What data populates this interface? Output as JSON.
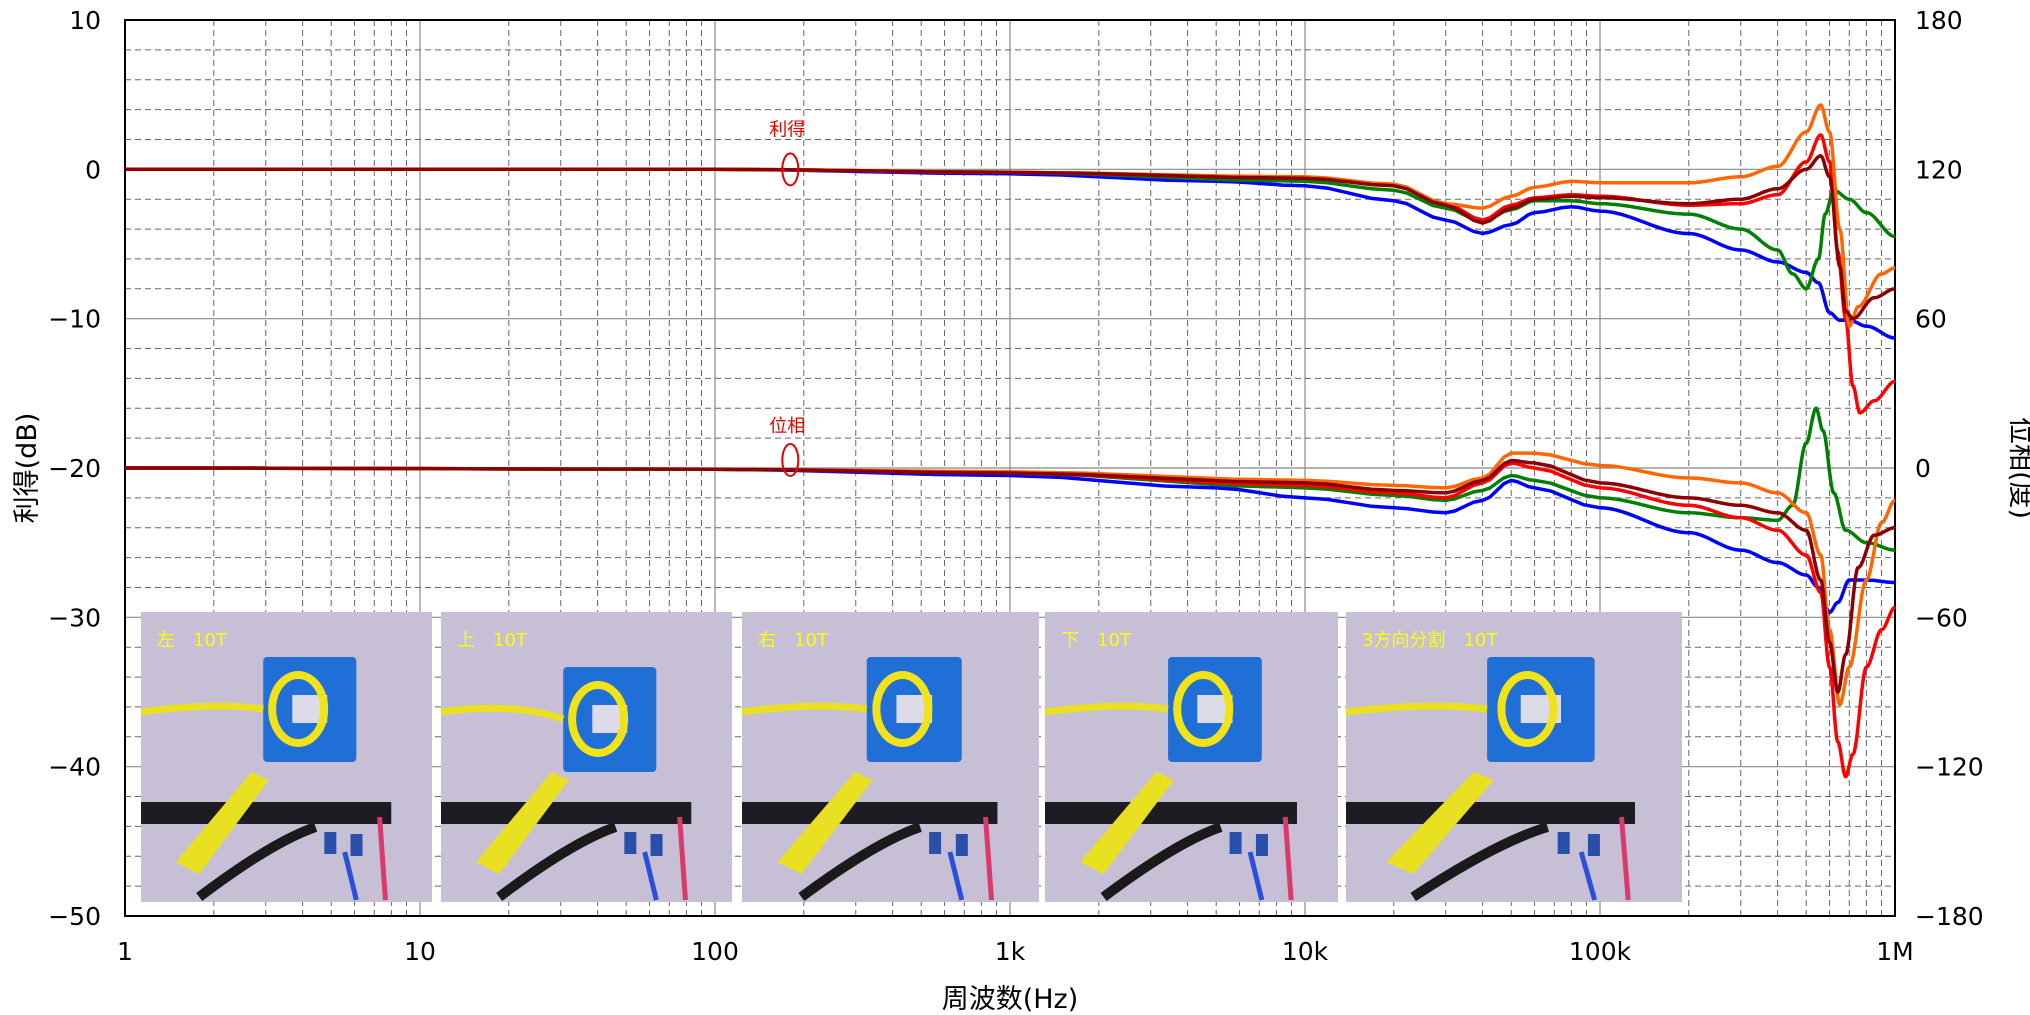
{
  "chart_data": {
    "type": "line",
    "xlabel": "周波数(Hz)",
    "ylabel": "利得(dB)",
    "y2label": "位相(度)",
    "xscale": "log",
    "xlim": [
      1,
      1000000
    ],
    "ylim": [
      -50,
      10
    ],
    "y2lim": [
      -180,
      180
    ],
    "grid": true,
    "x_ticks": [
      {
        "v": 1,
        "label": "1"
      },
      {
        "v": 10,
        "label": "10"
      },
      {
        "v": 100,
        "label": "100"
      },
      {
        "v": 1000,
        "label": "1k"
      },
      {
        "v": 10000,
        "label": "10k"
      },
      {
        "v": 100000,
        "label": "100k"
      },
      {
        "v": 1000000,
        "label": "1M"
      }
    ],
    "y_ticks": [
      {
        "v": 10,
        "label": "10"
      },
      {
        "v": 0,
        "label": "0"
      },
      {
        "v": -10,
        "label": "−10"
      },
      {
        "v": -20,
        "label": "−20"
      },
      {
        "v": -30,
        "label": "−30"
      },
      {
        "v": -40,
        "label": "−40"
      },
      {
        "v": -50,
        "label": "−50"
      }
    ],
    "y2_ticks": [
      {
        "v": 180,
        "label": "180"
      },
      {
        "v": 120,
        "label": "120"
      },
      {
        "v": 60,
        "label": "60"
      },
      {
        "v": 0,
        "label": "0"
      },
      {
        "v": -60,
        "label": "−60"
      },
      {
        "v": -120,
        "label": "−120"
      },
      {
        "v": -180,
        "label": "−180"
      }
    ],
    "annotations": [
      {
        "text": "利得",
        "x": 180,
        "y": 0
      },
      {
        "text": "位相",
        "x": 180,
        "phase": 0
      }
    ],
    "gain_series": [
      {
        "color": "#0000ff",
        "points": [
          [
            1,
            0
          ],
          [
            100,
            0
          ],
          [
            1000,
            -0.3
          ],
          [
            5000,
            -0.8
          ],
          [
            10000,
            -1.1
          ],
          [
            20000,
            -2.1
          ],
          [
            30000,
            -3.4
          ],
          [
            40000,
            -4.3
          ],
          [
            50000,
            -3.7
          ],
          [
            60000,
            -2.9
          ],
          [
            80000,
            -2.5
          ],
          [
            100000,
            -2.8
          ],
          [
            200000,
            -4.3
          ],
          [
            300000,
            -5.4
          ],
          [
            400000,
            -6.2
          ],
          [
            500000,
            -6.9
          ],
          [
            550000,
            -7.6
          ],
          [
            600000,
            -9.6
          ],
          [
            650000,
            -10.1
          ],
          [
            700000,
            -10.1
          ],
          [
            800000,
            -10.5
          ],
          [
            1000000,
            -11.3
          ]
        ]
      },
      {
        "color": "#008000",
        "points": [
          [
            1,
            0
          ],
          [
            100,
            0
          ],
          [
            1000,
            -0.2
          ],
          [
            10000,
            -0.8
          ],
          [
            20000,
            -1.4
          ],
          [
            30000,
            -2.6
          ],
          [
            40000,
            -3.5
          ],
          [
            50000,
            -2.7
          ],
          [
            60000,
            -2.1
          ],
          [
            80000,
            -2.1
          ],
          [
            100000,
            -2.3
          ],
          [
            200000,
            -3.0
          ],
          [
            300000,
            -4.0
          ],
          [
            400000,
            -5.4
          ],
          [
            450000,
            -7.0
          ],
          [
            500000,
            -8.0
          ],
          [
            550000,
            -6.0
          ],
          [
            580000,
            -3.0
          ],
          [
            620000,
            -1.4
          ],
          [
            700000,
            -2.0
          ],
          [
            800000,
            -2.9
          ],
          [
            1000000,
            -4.5
          ]
        ]
      },
      {
        "color": "#ff0000",
        "points": [
          [
            1,
            0
          ],
          [
            100,
            0
          ],
          [
            1000,
            -0.2
          ],
          [
            10000,
            -0.6
          ],
          [
            20000,
            -1.0
          ],
          [
            30000,
            -2.3
          ],
          [
            40000,
            -3.4
          ],
          [
            50000,
            -2.4
          ],
          [
            60000,
            -1.9
          ],
          [
            80000,
            -1.7
          ],
          [
            100000,
            -1.8
          ],
          [
            200000,
            -2.4
          ],
          [
            300000,
            -2.3
          ],
          [
            400000,
            -1.7
          ],
          [
            500000,
            0.5
          ],
          [
            560000,
            2.3
          ],
          [
            600000,
            0.5
          ],
          [
            640000,
            -5.5
          ],
          [
            680000,
            -10.0
          ],
          [
            720000,
            -14.5
          ],
          [
            760000,
            -16.3
          ],
          [
            850000,
            -15.5
          ],
          [
            1000000,
            -14.2
          ]
        ]
      },
      {
        "color": "#ff6600",
        "points": [
          [
            1,
            0
          ],
          [
            100,
            0
          ],
          [
            1000,
            -0.2
          ],
          [
            10000,
            -0.5
          ],
          [
            20000,
            -1.0
          ],
          [
            30000,
            -2.3
          ],
          [
            40000,
            -2.6
          ],
          [
            50000,
            -1.8
          ],
          [
            60000,
            -1.2
          ],
          [
            80000,
            -0.8
          ],
          [
            100000,
            -0.9
          ],
          [
            200000,
            -0.9
          ],
          [
            300000,
            -0.5
          ],
          [
            400000,
            0.2
          ],
          [
            500000,
            2.5
          ],
          [
            560000,
            4.3
          ],
          [
            600000,
            2.5
          ],
          [
            650000,
            -4.0
          ],
          [
            700000,
            -10.5
          ],
          [
            750000,
            -9.2
          ],
          [
            900000,
            -7.0
          ],
          [
            1000000,
            -6.6
          ]
        ]
      },
      {
        "color": "#8b0000",
        "points": [
          [
            1,
            0
          ],
          [
            100,
            0
          ],
          [
            1000,
            -0.2
          ],
          [
            10000,
            -0.6
          ],
          [
            20000,
            -1.1
          ],
          [
            30000,
            -2.4
          ],
          [
            40000,
            -3.6
          ],
          [
            50000,
            -2.6
          ],
          [
            60000,
            -2.0
          ],
          [
            80000,
            -1.8
          ],
          [
            100000,
            -1.9
          ],
          [
            200000,
            -2.3
          ],
          [
            300000,
            -2.0
          ],
          [
            400000,
            -1.3
          ],
          [
            500000,
            0.0
          ],
          [
            560000,
            0.9
          ],
          [
            600000,
            -0.5
          ],
          [
            650000,
            -6.5
          ],
          [
            680000,
            -9.5
          ],
          [
            720000,
            -10.0
          ],
          [
            850000,
            -8.6
          ],
          [
            1000000,
            -8.0
          ]
        ]
      }
    ],
    "phase_series": [
      {
        "color": "#0000ff",
        "points": [
          [
            1,
            0
          ],
          [
            100,
            -0.5
          ],
          [
            1000,
            -3
          ],
          [
            5000,
            -8
          ],
          [
            10000,
            -12
          ],
          [
            20000,
            -16
          ],
          [
            30000,
            -18
          ],
          [
            40000,
            -13
          ],
          [
            50000,
            -5
          ],
          [
            60000,
            -8
          ],
          [
            100000,
            -16
          ],
          [
            200000,
            -26
          ],
          [
            300000,
            -33
          ],
          [
            400000,
            -38
          ],
          [
            500000,
            -43
          ],
          [
            550000,
            -48
          ],
          [
            600000,
            -58
          ],
          [
            640000,
            -54
          ],
          [
            700000,
            -45
          ],
          [
            800000,
            -45
          ],
          [
            1000000,
            -46
          ]
        ]
      },
      {
        "color": "#008000",
        "points": [
          [
            1,
            0
          ],
          [
            100,
            -0.5
          ],
          [
            1000,
            -2
          ],
          [
            10000,
            -8
          ],
          [
            20000,
            -11
          ],
          [
            30000,
            -13
          ],
          [
            40000,
            -9
          ],
          [
            50000,
            -3
          ],
          [
            60000,
            -5
          ],
          [
            100000,
            -12
          ],
          [
            200000,
            -18
          ],
          [
            300000,
            -20
          ],
          [
            400000,
            -21
          ],
          [
            450000,
            -15
          ],
          [
            500000,
            10
          ],
          [
            540000,
            24
          ],
          [
            570000,
            15
          ],
          [
            620000,
            -10
          ],
          [
            680000,
            -25
          ],
          [
            800000,
            -30
          ],
          [
            1000000,
            -33
          ]
        ]
      },
      {
        "color": "#ff0000",
        "points": [
          [
            1,
            0
          ],
          [
            100,
            -0.5
          ],
          [
            1000,
            -2
          ],
          [
            10000,
            -7
          ],
          [
            20000,
            -10
          ],
          [
            30000,
            -12
          ],
          [
            40000,
            -6
          ],
          [
            50000,
            2
          ],
          [
            60000,
            0
          ],
          [
            100000,
            -8
          ],
          [
            200000,
            -15
          ],
          [
            300000,
            -20
          ],
          [
            400000,
            -25
          ],
          [
            500000,
            -35
          ],
          [
            560000,
            -50
          ],
          [
            600000,
            -80
          ],
          [
            640000,
            -110
          ],
          [
            680000,
            -124
          ],
          [
            720000,
            -115
          ],
          [
            800000,
            -80
          ],
          [
            900000,
            -65
          ],
          [
            1000000,
            -56
          ]
        ]
      },
      {
        "color": "#ff6600",
        "points": [
          [
            1,
            0
          ],
          [
            100,
            -0.5
          ],
          [
            1000,
            -1.5
          ],
          [
            10000,
            -5
          ],
          [
            20000,
            -7
          ],
          [
            30000,
            -8
          ],
          [
            40000,
            -4
          ],
          [
            50000,
            6
          ],
          [
            60000,
            6
          ],
          [
            100000,
            1
          ],
          [
            200000,
            -4
          ],
          [
            300000,
            -6
          ],
          [
            400000,
            -10
          ],
          [
            500000,
            -18
          ],
          [
            560000,
            -35
          ],
          [
            600000,
            -65
          ],
          [
            650000,
            -95
          ],
          [
            700000,
            -80
          ],
          [
            800000,
            -45
          ],
          [
            900000,
            -22
          ],
          [
            1000000,
            -13
          ]
        ]
      },
      {
        "color": "#8b0000",
        "points": [
          [
            1,
            0
          ],
          [
            100,
            -0.5
          ],
          [
            1000,
            -2
          ],
          [
            10000,
            -6
          ],
          [
            20000,
            -9
          ],
          [
            30000,
            -10
          ],
          [
            40000,
            -5
          ],
          [
            50000,
            3
          ],
          [
            60000,
            2
          ],
          [
            100000,
            -6
          ],
          [
            200000,
            -12
          ],
          [
            300000,
            -15
          ],
          [
            400000,
            -18
          ],
          [
            500000,
            -25
          ],
          [
            560000,
            -45
          ],
          [
            600000,
            -70
          ],
          [
            640000,
            -90
          ],
          [
            680000,
            -75
          ],
          [
            750000,
            -40
          ],
          [
            850000,
            -27
          ],
          [
            1000000,
            -24
          ]
        ]
      }
    ]
  },
  "insets": [
    {
      "label": "左　10T"
    },
    {
      "label": "上　10T"
    },
    {
      "label": "右　10T"
    },
    {
      "label": "下　10T"
    },
    {
      "label": "3方向分割　10T"
    }
  ]
}
